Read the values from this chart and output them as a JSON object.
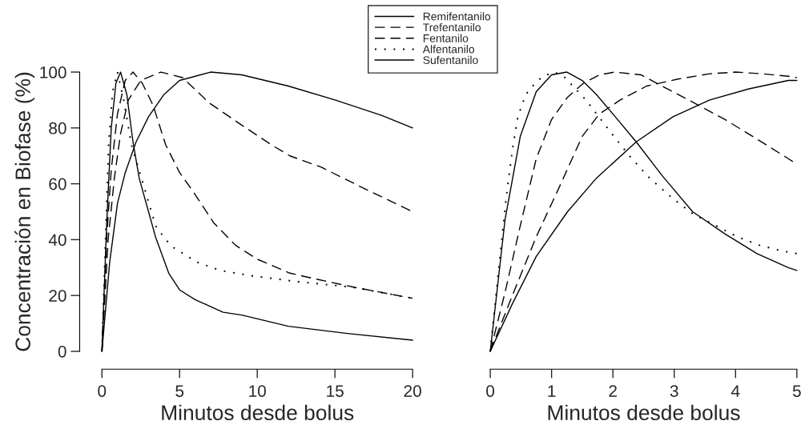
{
  "chart_data": [
    {
      "type": "line",
      "xlabel": "Minutos desde bolus",
      "ylabel": "Concentración en Biofase (%)",
      "xlim": [
        0,
        20
      ],
      "xticks": [
        0,
        5,
        10,
        15,
        20
      ],
      "ylim": [
        0,
        100
      ],
      "yticks": [
        0,
        20,
        40,
        60,
        80,
        100
      ],
      "legend": "top",
      "grid": false,
      "series": [
        {
          "name": "Remifentanilo",
          "color": "#000000",
          "line_style": "solid",
          "x": [
            0,
            0.3,
            0.6,
            0.9,
            1.2,
            1.6,
            2.0,
            2.4,
            3.0,
            3.45,
            4.3,
            5,
            6,
            7.8,
            9,
            12,
            15.8,
            20
          ],
          "values": [
            0,
            45,
            80,
            96,
            100,
            92,
            75,
            62,
            50,
            41,
            28,
            22,
            18.5,
            14,
            13,
            9,
            6.4,
            4
          ]
        },
        {
          "name": "Trefentanilo",
          "color": "#000000",
          "line_style": "dashed",
          "x": [
            0,
            0.3,
            0.6,
            1.0,
            1.5,
            2.0,
            2.6,
            3.3,
            4.1,
            5.0,
            5.9,
            7.2,
            8.6,
            10,
            12.1,
            13.7,
            16.2,
            20
          ],
          "values": [
            0,
            40,
            65,
            85,
            97,
            100,
            96,
            88,
            74,
            64,
            57,
            46,
            38,
            33,
            28,
            26,
            23,
            19
          ]
        },
        {
          "name": "Fentanilo",
          "color": "#000000",
          "line_style": "dashed",
          "x": [
            0,
            0.4,
            0.8,
            1.2,
            1.7,
            2.5,
            3.8,
            5.2,
            6.9,
            9.0,
            10.9,
            12.1,
            14.1,
            17,
            20
          ],
          "values": [
            0,
            40,
            62,
            78,
            90,
            97,
            100,
            98,
            89,
            81,
            74,
            70,
            66,
            58,
            50
          ]
        },
        {
          "name": "Alfentanilo",
          "color": "#000000",
          "line_style": "dotted",
          "x": [
            0,
            0.26,
            0.43,
            0.69,
            1.0,
            1.4,
            1.9,
            2.6,
            3.45,
            4.1,
            4.65,
            6.1,
            7.6,
            9.7,
            12.5,
            16.1,
            20
          ],
          "values": [
            0,
            45,
            74,
            93,
            100,
            90,
            74,
            61,
            45,
            40,
            37,
            32,
            29,
            27,
            25,
            23,
            19
          ]
        },
        {
          "name": "Sufentanilo",
          "color": "#000000",
          "line_style": "solid",
          "x": [
            0,
            0.5,
            1,
            1.5,
            2.2,
            3,
            3.5,
            4,
            5,
            7,
            9,
            12,
            15,
            18,
            20
          ],
          "values": [
            0,
            32,
            53,
            64,
            75,
            84,
            88,
            92,
            97,
            100,
            99,
            95,
            90,
            84.5,
            80
          ]
        }
      ]
    },
    {
      "type": "line",
      "xlabel": "Minutos desde bolus",
      "xlim": [
        0,
        5
      ],
      "xticks": [
        0,
        1,
        2,
        3,
        4,
        5
      ],
      "ylim": [
        0,
        100
      ],
      "tick_labels": "x",
      "grid": false,
      "series": [
        {
          "color": "#000000",
          "line_style": "solid",
          "x": [
            0,
            0.24,
            0.49,
            0.75,
            1.0,
            1.25,
            1.5,
            1.73,
            2.0,
            2.38,
            2.8,
            3.3,
            3.83,
            4.35,
            4.86,
            5
          ],
          "values": [
            0,
            47,
            77,
            93,
            99,
            100,
            97,
            92,
            85,
            75,
            63,
            50,
            42,
            35,
            30,
            29
          ]
        },
        {
          "color": "#000000",
          "line_style": "dashed",
          "x": [
            0,
            0.24,
            0.49,
            0.75,
            1.0,
            1.26,
            1.52,
            1.78,
            2.03,
            2.46,
            2.8,
            3.32,
            3.83,
            4.35,
            4.86,
            5
          ],
          "values": [
            0,
            21,
            45,
            69,
            83,
            91,
            96,
            99,
            100,
            99,
            95,
            89,
            83,
            76,
            69,
            67
          ]
        },
        {
          "color": "#000000",
          "line_style": "dashed",
          "x": [
            0,
            0.36,
            0.75,
            1.13,
            1.5,
            1.78,
            2.12,
            2.55,
            3.06,
            3.58,
            4.0,
            4.43,
            4.86,
            5
          ],
          "values": [
            0,
            20,
            41,
            59,
            77,
            85,
            90,
            95,
            97.5,
            99.4,
            100,
            99.4,
            98.5,
            98
          ]
        },
        {
          "color": "#000000",
          "line_style": "dotted",
          "x": [
            0,
            0.15,
            0.26,
            0.36,
            0.45,
            0.58,
            0.73,
            0.86,
            1.05,
            1.22,
            1.39,
            1.56,
            1.7,
            1.98,
            2.27,
            2.6,
            2.96,
            3.32,
            3.68,
            4.03,
            4.39,
            4.75,
            5
          ],
          "values": [
            0,
            32,
            55,
            72,
            84,
            92,
            96,
            98.5,
            100,
            98,
            94,
            90,
            86,
            78,
            70,
            62,
            55,
            49,
            45,
            41,
            38,
            36,
            35
          ]
        },
        {
          "color": "#000000",
          "line_style": "solid",
          "x": [
            0,
            0.36,
            0.75,
            1.26,
            1.73,
            2.38,
            2.98,
            3.58,
            4.22,
            4.86,
            5
          ],
          "values": [
            0,
            17,
            34,
            50,
            62,
            75,
            84,
            90,
            94,
            97,
            97
          ]
        }
      ]
    }
  ]
}
